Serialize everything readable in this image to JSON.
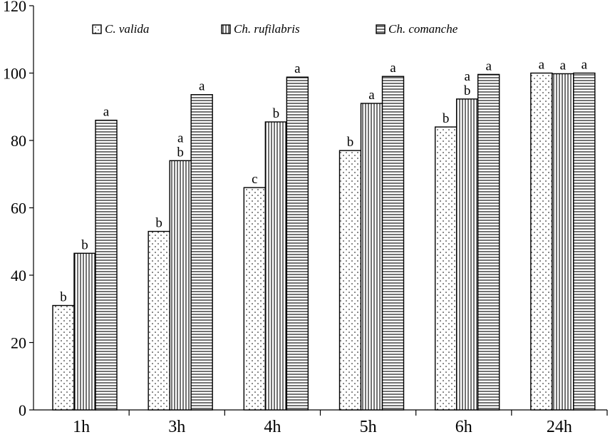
{
  "chart_data": {
    "type": "bar",
    "title": "",
    "xlabel": "",
    "ylabel": "",
    "ylim": [
      0,
      120
    ],
    "yticks": [
      0,
      20,
      40,
      60,
      80,
      100,
      120
    ],
    "categories": [
      "1h",
      "3h",
      "4h",
      "5h",
      "6h",
      "24h"
    ],
    "grid": false,
    "legend_position": "top",
    "series": [
      {
        "name": "C. valida",
        "pattern": "dots",
        "values": [
          31,
          53,
          66,
          77,
          84,
          100
        ],
        "labels": [
          "b",
          "b",
          "c",
          "b",
          "b",
          "a"
        ]
      },
      {
        "name": "Ch. rufilabris",
        "pattern": "vertical-lines",
        "values": [
          46.5,
          74,
          85.5,
          91,
          92.3,
          99.8
        ],
        "labels": [
          "b",
          "a b",
          "b",
          "a",
          "a b",
          "a"
        ]
      },
      {
        "name": "Ch. comanche",
        "pattern": "horizontal-lines",
        "values": [
          86,
          93.6,
          98.8,
          99,
          99.6,
          100
        ],
        "labels": [
          "a",
          "a",
          "a",
          "a",
          "a",
          "a"
        ]
      }
    ]
  },
  "colors": {
    "stroke": "#000000",
    "background": "#ffffff"
  }
}
